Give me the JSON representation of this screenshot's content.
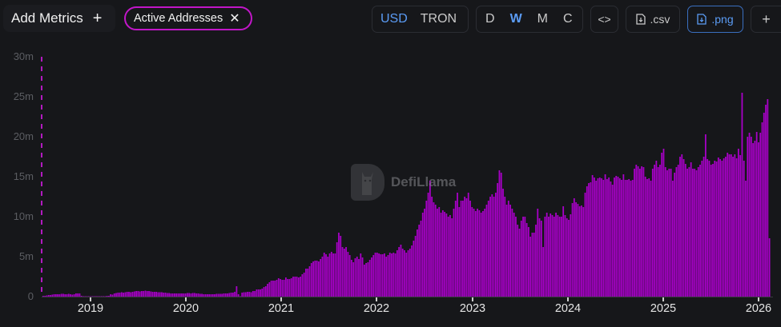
{
  "toolbar": {
    "add_metrics_label": "Add Metrics",
    "add_metrics_icon": "+",
    "metric_chip_label": "Active Addresses",
    "metric_chip_close_icon": "✕",
    "denomination": {
      "options": [
        "USD",
        "TRON"
      ],
      "selected": "USD"
    },
    "granularity": {
      "options": [
        "D",
        "W",
        "M",
        "C"
      ],
      "selected": "W"
    },
    "embed_icon": "<>",
    "csv_label": ".csv",
    "png_label": ".png",
    "more_icon": "+"
  },
  "watermark": {
    "text": "DefiLlama"
  },
  "colors": {
    "bar": "#a800c8",
    "accent_blue": "#5b9cf5",
    "chip_border": "#c216c9",
    "background": "#16171a"
  },
  "chart_data": {
    "type": "bar",
    "title": "Active Addresses",
    "xlabel": "",
    "ylabel": "",
    "ylim": [
      0,
      30000000
    ],
    "y_ticks": [
      "0",
      "5m",
      "10m",
      "15m",
      "20m",
      "25m",
      "30m"
    ],
    "x_ticks": [
      "2019",
      "2020",
      "2021",
      "2022",
      "2023",
      "2024",
      "2025",
      "2026"
    ],
    "granularity": "weekly",
    "grid": false,
    "legend": "none",
    "series": [
      {
        "name": "Active Addresses",
        "x_start": "2018-07",
        "x_end": "2026-02",
        "values_m": [
          0.1,
          0.1,
          0.15,
          0.2,
          0.2,
          0.25,
          0.3,
          0.3,
          0.3,
          0.3,
          0.35,
          0.35,
          0.3,
          0.3,
          0.35,
          0.3,
          0.25,
          0.3,
          0.4,
          0.4,
          0.4,
          0.1,
          0.05,
          0.05,
          0.05,
          0.05,
          0.05,
          0.05,
          0.05,
          0.05,
          0.05,
          0.05,
          0.05,
          0.05,
          0.05,
          0.1,
          0.1,
          0.3,
          0.25,
          0.4,
          0.45,
          0.5,
          0.5,
          0.55,
          0.5,
          0.55,
          0.6,
          0.6,
          0.55,
          0.6,
          0.65,
          0.7,
          0.7,
          0.65,
          0.7,
          0.7,
          0.75,
          0.7,
          0.7,
          0.65,
          0.6,
          0.6,
          0.6,
          0.55,
          0.55,
          0.55,
          0.5,
          0.5,
          0.45,
          0.45,
          0.4,
          0.4,
          0.4,
          0.4,
          0.4,
          0.4,
          0.4,
          0.4,
          0.4,
          0.45,
          0.45,
          0.4,
          0.45,
          0.45,
          0.4,
          0.4,
          0.35,
          0.35,
          0.3,
          0.3,
          0.3,
          0.3,
          0.3,
          0.3,
          0.3,
          0.35,
          0.35,
          0.35,
          0.35,
          0.4,
          0.4,
          0.4,
          0.45,
          0.5,
          0.5,
          0.6,
          1.3,
          0.3,
          0.05,
          0.5,
          0.55,
          0.55,
          0.6,
          0.6,
          0.55,
          0.7,
          0.7,
          0.9,
          0.9,
          0.9,
          1.0,
          1.2,
          1.3,
          1.6,
          1.8,
          2.0,
          2.0,
          2.0,
          2.1,
          2.3,
          2.2,
          2.1,
          2.1,
          2.4,
          2.2,
          2.2,
          2.3,
          2.5,
          2.5,
          2.5,
          2.4,
          2.5,
          2.8,
          3.0,
          3.5,
          3.5,
          3.8,
          4.2,
          4.4,
          4.5,
          4.5,
          4.4,
          4.7,
          5.0,
          5.5,
          5.3,
          5.0,
          5.4,
          5.6,
          5.4,
          5.4,
          6.8,
          8.0,
          7.6,
          6.2,
          6.0,
          6.2,
          5.6,
          5.2,
          4.6,
          4.3,
          4.8,
          5.0,
          4.7,
          5.4,
          4.9,
          4.0,
          4.2,
          4.3,
          4.6,
          4.9,
          5.2,
          5.5,
          5.5,
          5.4,
          5.3,
          5.3,
          5.4,
          5.0,
          5.2,
          5.5,
          5.4,
          5.5,
          5.4,
          5.8,
          6.2,
          6.5,
          6.0,
          5.8,
          5.5,
          5.8,
          6.0,
          6.4,
          7.0,
          7.6,
          8.4,
          9.0,
          9.5,
          10.5,
          11.0,
          12.0,
          13.0,
          14.5,
          12.5,
          11.8,
          11.5,
          11.0,
          11.2,
          10.5,
          10.8,
          10.6,
          10.4,
          10.0,
          10.2,
          9.8,
          11.0,
          12.0,
          13.0,
          11.2,
          12.0,
          12.0,
          12.5,
          12.3,
          13.0,
          12.0,
          11.2,
          11.0,
          10.7,
          11.0,
          10.8,
          10.5,
          10.7,
          11.0,
          11.5,
          12.0,
          12.5,
          12.8,
          12.5,
          13.0,
          14.2,
          15.8,
          15.5,
          13.5,
          12.5,
          11.5,
          12.0,
          11.5,
          11.0,
          10.5,
          10.0,
          9.0,
          8.5,
          9.5,
          10.0,
          10.0,
          9.2,
          8.7,
          7.5,
          8.0,
          8.0,
          9.0,
          11.0,
          9.8,
          9.5,
          6.2,
          10.0,
          10.5,
          10.0,
          10.4,
          10.2,
          10.0,
          10.5,
          10.2,
          10.0,
          10.0,
          11.3,
          10.2,
          9.8,
          9.6,
          10.3,
          11.7,
          12.3,
          11.8,
          11.6,
          11.3,
          11.4,
          11.2,
          13.0,
          13.8,
          14.2,
          14.3,
          15.2,
          14.9,
          14.5,
          14.8,
          14.9,
          14.8,
          14.6,
          15.3,
          14.7,
          14.9,
          14.4,
          14.0,
          14.9,
          15.1,
          15.0,
          14.8,
          14.6,
          15.3,
          14.6,
          14.6,
          14.7,
          14.5,
          14.6,
          16.0,
          16.5,
          16.3,
          16.0,
          16.3,
          16.2,
          15.0,
          14.7,
          14.8,
          14.5,
          16.0,
          16.5,
          17.0,
          16.2,
          16.5,
          18.0,
          18.5,
          16.2,
          15.8,
          16.0,
          16.0,
          14.5,
          15.5,
          16.2,
          16.5,
          17.5,
          17.8,
          17.2,
          16.6,
          16.0,
          16.2,
          16.8,
          16.0,
          16.0,
          15.8,
          16.2,
          16.5,
          17.0,
          17.5,
          20.3,
          17.2,
          17.0,
          16.5,
          16.6,
          17.0,
          16.9,
          17.4,
          17.2,
          17.0,
          17.3,
          17.5,
          18.0,
          17.8,
          17.8,
          17.5,
          17.8,
          17.3,
          18.5,
          17.7,
          25.5,
          17.0,
          14.5,
          20.0,
          20.5,
          20.0,
          19.2,
          19.5,
          20.6,
          19.3,
          20.5,
          21.8,
          23.0,
          24.0,
          24.7,
          7.3
        ]
      }
    ]
  }
}
